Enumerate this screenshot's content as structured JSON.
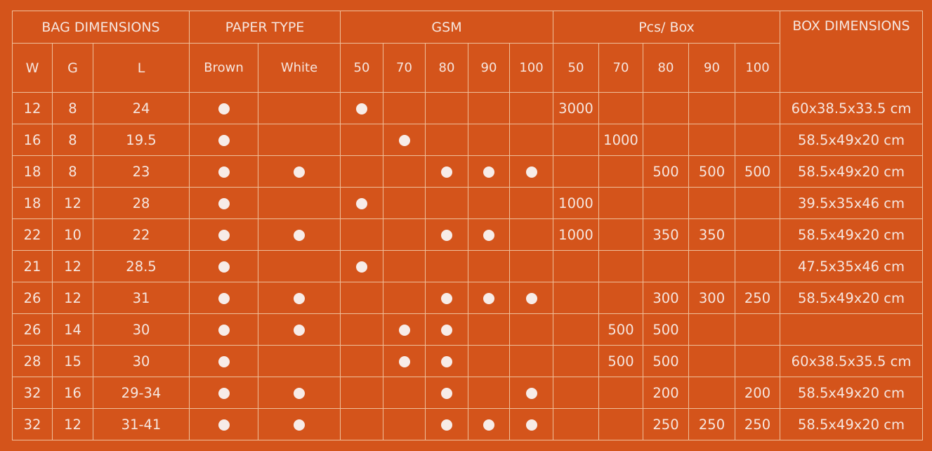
{
  "colors": {
    "background": "#d4541b",
    "lines": "#efbf9a",
    "text": "#f6e6df"
  },
  "headers": {
    "bag_dimensions": "BAG DIMENSIONS",
    "paper_type": "PAPER TYPE",
    "gsm": "GSM",
    "pcs_box": "Pcs/ Box",
    "box_dimensions": "BOX DIMENSIONS",
    "w": "W",
    "g": "G",
    "l": "L",
    "brown": "Brown",
    "white": "White",
    "gsm_values": [
      "50",
      "70",
      "80",
      "90",
      "100"
    ],
    "pcs_values": [
      "50",
      "70",
      "80",
      "90",
      "100"
    ]
  },
  "rows": [
    {
      "w": "12",
      "g": "8",
      "l": "24",
      "brown": true,
      "white": false,
      "gsm": [
        true,
        false,
        false,
        false,
        false
      ],
      "pcs": [
        "3000",
        "",
        "",
        "",
        ""
      ],
      "box": "60x38.5x33.5 cm"
    },
    {
      "w": "16",
      "g": "8",
      "l": "19.5",
      "brown": true,
      "white": false,
      "gsm": [
        false,
        true,
        false,
        false,
        false
      ],
      "pcs": [
        "",
        "1000",
        "",
        "",
        ""
      ],
      "box": "58.5x49x20 cm"
    },
    {
      "w": "18",
      "g": "8",
      "l": "23",
      "brown": true,
      "white": true,
      "gsm": [
        false,
        false,
        true,
        true,
        true
      ],
      "pcs": [
        "",
        "",
        "500",
        "500",
        "500"
      ],
      "box": "58.5x49x20 cm"
    },
    {
      "w": "18",
      "g": "12",
      "l": "28",
      "brown": true,
      "white": false,
      "gsm": [
        true,
        false,
        false,
        false,
        false
      ],
      "pcs": [
        "1000",
        "",
        "",
        "",
        ""
      ],
      "box": "39.5x35x46 cm"
    },
    {
      "w": "22",
      "g": "10",
      "l": "22",
      "brown": true,
      "white": true,
      "gsm": [
        false,
        false,
        true,
        true,
        false
      ],
      "pcs": [
        "1000",
        "",
        "350",
        "350",
        ""
      ],
      "box": "58.5x49x20 cm"
    },
    {
      "w": "21",
      "g": "12",
      "l": "28.5",
      "brown": true,
      "white": false,
      "gsm": [
        true,
        false,
        false,
        false,
        false
      ],
      "pcs": [
        "",
        "",
        "",
        "",
        ""
      ],
      "box": "47.5x35x46 cm"
    },
    {
      "w": "26",
      "g": "12",
      "l": "31",
      "brown": true,
      "white": true,
      "gsm": [
        false,
        false,
        true,
        true,
        true
      ],
      "pcs": [
        "",
        "",
        "300",
        "300",
        "250"
      ],
      "box": "58.5x49x20 cm"
    },
    {
      "w": "26",
      "g": "14",
      "l": "30",
      "brown": true,
      "white": true,
      "gsm": [
        false,
        true,
        true,
        false,
        false
      ],
      "pcs": [
        "",
        "500",
        "500",
        "",
        ""
      ],
      "box": ""
    },
    {
      "w": "28",
      "g": "15",
      "l": "30",
      "brown": true,
      "white": false,
      "gsm": [
        false,
        true,
        true,
        false,
        false
      ],
      "pcs": [
        "",
        "500",
        "500",
        "",
        ""
      ],
      "box": "60x38.5x35.5 cm"
    },
    {
      "w": "32",
      "g": "16",
      "l": "29-34",
      "brown": true,
      "white": true,
      "gsm": [
        false,
        false,
        true,
        false,
        true
      ],
      "pcs": [
        "",
        "",
        "200",
        "",
        "200"
      ],
      "box": "58.5x49x20 cm"
    },
    {
      "w": "32",
      "g": "12",
      "l": "31-41",
      "brown": true,
      "white": true,
      "gsm": [
        false,
        false,
        true,
        true,
        true
      ],
      "pcs": [
        "",
        "",
        "250",
        "250",
        "250"
      ],
      "box": "58.5x49x20 cm"
    }
  ]
}
